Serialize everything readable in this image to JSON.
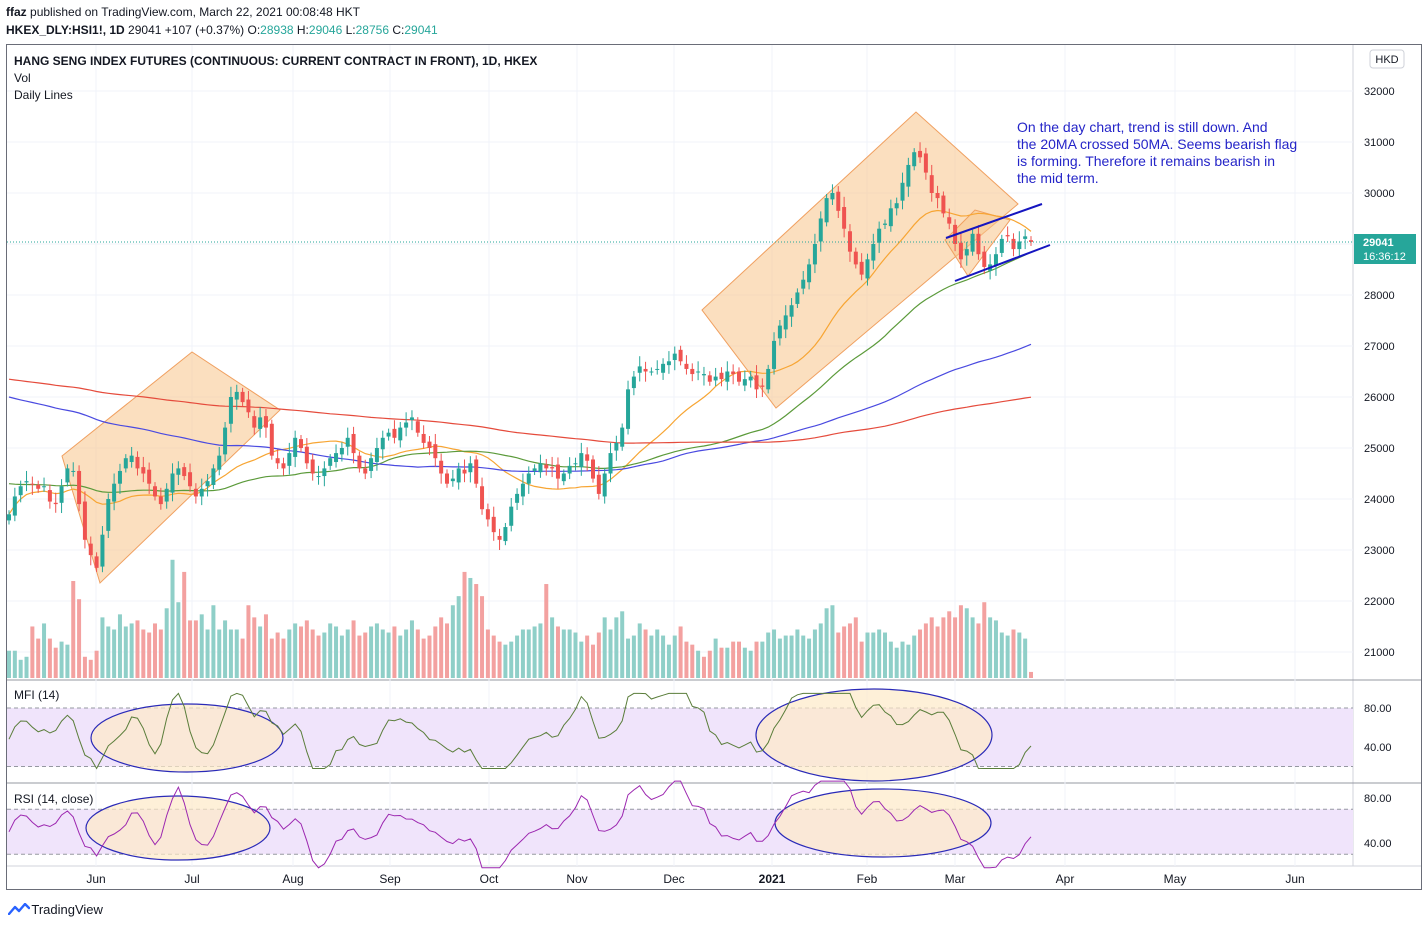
{
  "header": {
    "publisher_user": "ffaz",
    "publisher_text": "published on TradingView.com, March 22, 2021 00:08:48 HKT",
    "symbol": "HKEX_DLY:HSI1!, 1D",
    "last": "29041",
    "change": "+107 (+0.37%)",
    "o_label": "O:",
    "o": "28938",
    "h_label": "H:",
    "h": "29046",
    "l_label": "L:",
    "l": "28756",
    "c_label": "C:",
    "c": "29041"
  },
  "legend": {
    "title": "HANG SENG INDEX FUTURES (CONTINUOUS: CURRENT CONTRACT IN FRONT), 1D, HKEX",
    "vol": "Vol",
    "lines": "Daily Lines"
  },
  "currency": "HKD",
  "price_tag": {
    "price": "29041",
    "countdown": "16:36:12"
  },
  "annotation": "On the day chart, trend is still down. And the 20MA crossed 50MA. Seems bearish flag is forming. Therefore it remains bearish in the mid term.",
  "annotation_lines": [
    "On the day chart, trend is still down. And",
    "the 20MA crossed 50MA. Seems bearish flag",
    "is forming. Therefore it remains bearish in",
    "the mid term."
  ],
  "mfi": {
    "label": "MFI (14)",
    "ticks": [
      "80.00",
      "40.00"
    ]
  },
  "rsi": {
    "label": "RSI (14, close)",
    "ticks": [
      "80.00",
      "40.00"
    ]
  },
  "footer": "TradingView",
  "colors": {
    "up": "#26a69a",
    "down": "#ef5350",
    "vol_up": "#8fcfc8",
    "vol_down": "#f3a1a0",
    "ma20": "#f7a533",
    "ma50": "#5b9a3a",
    "ma100": "#4a4ae0",
    "ma200": "#e54b3c",
    "box": "#f8c48a",
    "annotation": "#2525c8",
    "oscillator_band": "#f0e4fb",
    "mfi_line": "#5a7d3a",
    "rsi_line": "#9c27b0",
    "ellipse": "#2a2ab8"
  },
  "chart_data": {
    "type": "candlestick",
    "price_axis": {
      "ticks": [
        32000,
        31000,
        30000,
        29000,
        28000,
        27000,
        26000,
        25000,
        24000,
        23000,
        22000,
        21000
      ],
      "range": [
        20500,
        32700
      ]
    },
    "time_axis": [
      "Jun",
      "Jul",
      "Aug",
      "Sep",
      "Oct",
      "Nov",
      "Dec",
      "2021",
      "Feb",
      "Mar",
      "Apr",
      "May",
      "Jun"
    ],
    "last_price": 29041,
    "daily_close": [
      23700,
      24050,
      24250,
      24350,
      24280,
      24200,
      24250,
      23950,
      23900,
      24250,
      24600,
      24550,
      23900,
      23200,
      22900,
      22650,
      23300,
      24000,
      24300,
      24550,
      24800,
      24850,
      24600,
      24500,
      24300,
      24050,
      23900,
      24200,
      24500,
      24600,
      24450,
      24250,
      24050,
      24200,
      24350,
      24600,
      24850,
      25400,
      26000,
      26100,
      25900,
      25700,
      25400,
      25600,
      25400,
      24850,
      24700,
      24600,
      24900,
      25200,
      25000,
      24700,
      24500,
      24450,
      24600,
      24800,
      24900,
      25000,
      25200,
      24900,
      24600,
      24500,
      24800,
      25000,
      25200,
      25300,
      25200,
      25400,
      25500,
      25600,
      25300,
      25100,
      25000,
      24800,
      24500,
      24300,
      24400,
      24600,
      24500,
      24700,
      24300,
      23800,
      23600,
      23350,
      23200,
      23450,
      23850,
      24100,
      24300,
      24500,
      24600,
      24700,
      24600,
      24600,
      24400,
      24500,
      24650,
      24700,
      24900,
      24750,
      24400,
      24100,
      24500,
      24900,
      25100,
      25400,
      26150,
      26400,
      26600,
      26500,
      26500,
      26550,
      26650,
      26700,
      26850,
      26700,
      26550,
      26450,
      26500,
      26450,
      26300,
      26400,
      26350,
      26500,
      26450,
      26300,
      26350,
      26400,
      26150,
      26200,
      26550,
      27100,
      27400,
      27600,
      27800,
      28050,
      28300,
      28600,
      29000,
      29500,
      29900,
      30000,
      29650,
      29300,
      28850,
      28600,
      28400,
      28700,
      29000,
      29300,
      29400,
      29700,
      29800,
      30200,
      30550,
      30800,
      30700,
      30400,
      30000,
      29900,
      29600,
      29400,
      29000,
      28700,
      28900,
      29200,
      28800,
      28550,
      28600,
      28800,
      29100,
      29150,
      28900,
      29050,
      29150,
      29041
    ],
    "daily_volume": [
      21450,
      21450,
      21300,
      21350,
      21850,
      21650,
      21900,
      21650,
      21500,
      21600,
      21550,
      22600,
      22300,
      21350,
      21300,
      21450,
      22000,
      21850,
      21800,
      22050,
      21850,
      21900,
      21950,
      21800,
      21750,
      21900,
      21800,
      22150,
      22950,
      22250,
      22750,
      21950,
      21950,
      22050,
      21800,
      22200,
      21800,
      21950,
      21800,
      21800,
      21650,
      22200,
      22000,
      21850,
      22050,
      21650,
      21750,
      21650,
      21800,
      21900,
      21850,
      21950,
      21800,
      21700,
      21750,
      21900,
      21850,
      21700,
      21800,
      21950,
      21700,
      21750,
      21850,
      21900,
      21800,
      21750,
      21850,
      21700,
      21800,
      21950,
      21800,
      21650,
      21700,
      21850,
      22000,
      21900,
      22200,
      22350,
      22750,
      22650,
      22550,
      22350,
      21800,
      21700,
      21600,
      21550,
      21600,
      21700,
      21800,
      21800,
      21850,
      21900,
      22550,
      22000,
      21850,
      21800,
      21800,
      21750,
      21600,
      21700,
      21550,
      21750,
      22000,
      21800,
      22000,
      22100,
      21650,
      21700,
      21900,
      21800,
      21700,
      21800,
      21700,
      21550,
      21700,
      21850,
      21600,
      21550,
      21450,
      21350,
      21450,
      21650,
      21500,
      21500,
      21600,
      21600,
      21500,
      21450,
      21600,
      21600,
      21750,
      21800,
      21650,
      21700,
      21700,
      21800,
      21700,
      21650,
      21800,
      21900,
      22150,
      22200,
      21750,
      21850,
      21900,
      22000,
      21600,
      21750,
      21750,
      21800,
      21750,
      21600,
      21500,
      21600,
      21550,
      21700,
      21800,
      21900,
      22000,
      21850,
      22000,
      22100,
      22000,
      22200,
      22150,
      22000,
      21900,
      22250,
      22000,
      21950,
      21750,
      21700,
      21800,
      21750,
      21650,
      21100
    ],
    "moving_averages": [
      "20MA",
      "50MA",
      "100MA",
      "200MA"
    ]
  }
}
